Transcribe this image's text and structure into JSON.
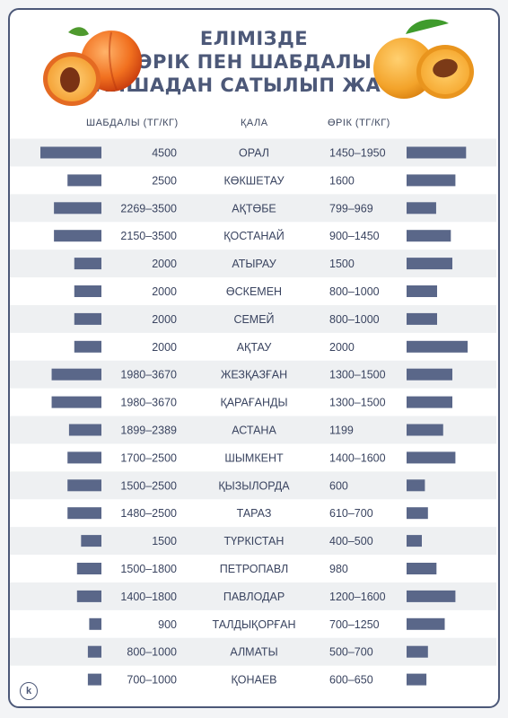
{
  "title_lines": [
    "ЕЛІМІЗДЕ",
    "ӨРІК ПЕН ШАБДАЛЫ",
    "ҚАНШАДАН САТЫЛЫП ЖАТЫР"
  ],
  "colors": {
    "bar": "#5a6789",
    "stripe": "#eef0f2",
    "text": "#3a4460",
    "accent": "#4c5878"
  },
  "chart_data": {
    "type": "bar",
    "headers": {
      "left": "ШАБДАЛЫ (ТГ/КГ)",
      "city": "ҚАЛА",
      "right": "ӨРІК (ТГ/КГ)"
    },
    "categories": [
      "ОРАЛ",
      "КӨКШЕТАУ",
      "АҚТӨБЕ",
      "ҚОСТАНАЙ",
      "АТЫРАУ",
      "ӨСКЕМЕН",
      "СЕМЕЙ",
      "АҚТАУ",
      "ЖЕЗҚАЗҒАН",
      "ҚАРАҒАНДЫ",
      "АСТАНА",
      "ШЫМКЕНТ",
      "ҚЫЗЫЛОРДА",
      "ТАРАЗ",
      "ТҮРКІСТАН",
      "ПЕТРОПАВЛ",
      "ПАВЛОДАР",
      "ТАЛДЫҚОРҒАН",
      "АЛМАТЫ",
      "ҚОНАЕВ"
    ],
    "series": [
      {
        "name": "ШАБДАЛЫ (ТГ/КГ)",
        "labels": [
          "4500",
          "2500",
          "2269–3500",
          "2150–3500",
          "2000",
          "2000",
          "2000",
          "2000",
          "1980–3670",
          "1980–3670",
          "1899–2389",
          "1700–2500",
          "1500–2500",
          "1480–2500",
          "1500",
          "1500–1800",
          "1400–1800",
          "900",
          "800–1000",
          "700–1000"
        ],
        "values": [
          4500,
          2500,
          3500,
          3500,
          2000,
          2000,
          2000,
          2000,
          3670,
          3670,
          2389,
          2500,
          2500,
          2500,
          1500,
          1800,
          1800,
          900,
          1000,
          1000
        ]
      },
      {
        "name": "ӨРІК (ТГ/КГ)",
        "labels": [
          "1450–1950",
          "1600",
          "799–969",
          "900–1450",
          "1500",
          "800–1000",
          "800–1000",
          "2000",
          "1300–1500",
          "1300–1500",
          "1199",
          "1400–1600",
          "600",
          "610–700",
          "400–500",
          "980",
          "1200–1600",
          "700–1250",
          "500–700",
          "600–650"
        ],
        "values": [
          1950,
          1600,
          969,
          1450,
          1500,
          1000,
          1000,
          2000,
          1500,
          1500,
          1199,
          1600,
          600,
          700,
          500,
          980,
          1600,
          1250,
          700,
          650
        ]
      }
    ]
  },
  "logo_letter": "k"
}
